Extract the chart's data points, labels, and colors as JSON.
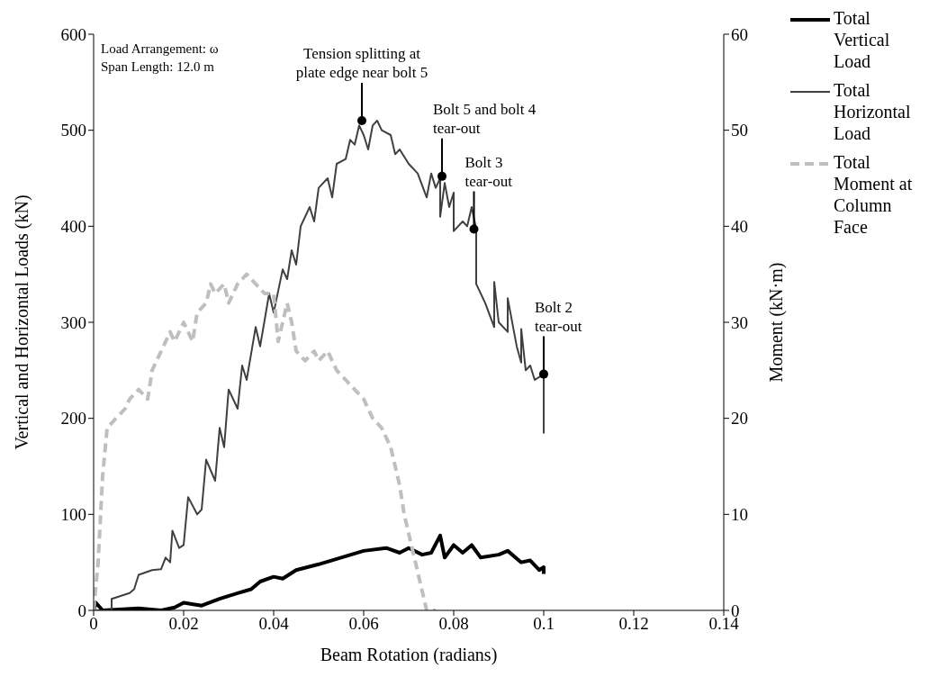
{
  "chart_data": {
    "type": "line",
    "xlabel": "Beam Rotation (radians)",
    "ylabel": "Vertical and Horizontal Loads (kN)",
    "y2label": "Moment (kN·m)",
    "xlim": [
      0,
      0.14
    ],
    "xticks": [
      0,
      0.02,
      0.04,
      0.06,
      0.08,
      0.1,
      0.12,
      0.14
    ],
    "ylim": [
      0,
      600
    ],
    "yticks": [
      0,
      100,
      200,
      300,
      400,
      500,
      600
    ],
    "y2lim": [
      0,
      60
    ],
    "y2ticks": [
      0,
      10,
      20,
      30,
      40,
      50,
      60
    ],
    "grid": false,
    "legend": "right",
    "annotations": [
      "Load Arrangement: ω",
      "Span Length: 12.0 m",
      {
        "text": "Tension splitting at plate edge near bolt 5",
        "x": 0.0596,
        "y": 510
      },
      {
        "text": "Bolt 5 and bolt 4 tear-out",
        "x": 0.0774,
        "y": 452
      },
      {
        "text": "Bolt 3 tear-out",
        "x": 0.0845,
        "y": 397
      },
      {
        "text": "Bolt 2 tear-out",
        "x": 0.1,
        "y": 246
      }
    ],
    "series": [
      {
        "name": "Total Vertical Load",
        "color": "#000000",
        "line_style": "solid",
        "x": [
          0,
          0.0005,
          0.002,
          0.01,
          0.015,
          0.018,
          0.02,
          0.024,
          0.028,
          0.032,
          0.035,
          0.037,
          0.04,
          0.042,
          0.045,
          0.05,
          0.055,
          0.06,
          0.065,
          0.068,
          0.07,
          0.073,
          0.075,
          0.077,
          0.078,
          0.08,
          0.082,
          0.084,
          0.086,
          0.09,
          0.092,
          0.095,
          0.097,
          0.099,
          0.1,
          0.1
        ],
        "values": [
          0,
          8,
          0,
          2,
          0,
          3,
          8,
          5,
          12,
          18,
          22,
          30,
          35,
          33,
          42,
          48,
          55,
          62,
          65,
          60,
          65,
          58,
          60,
          78,
          55,
          68,
          60,
          68,
          55,
          58,
          62,
          50,
          52,
          42,
          45,
          38
        ]
      },
      {
        "name": "Total Horizontal Load",
        "color": "#404040",
        "line_style": "solid",
        "x": [
          0,
          0.004,
          0.004,
          0.008,
          0.009,
          0.01,
          0.013,
          0.015,
          0.016,
          0.017,
          0.0175,
          0.019,
          0.02,
          0.021,
          0.023,
          0.024,
          0.025,
          0.027,
          0.028,
          0.029,
          0.03,
          0.032,
          0.033,
          0.034,
          0.036,
          0.037,
          0.039,
          0.04,
          0.042,
          0.043,
          0.044,
          0.045,
          0.046,
          0.048,
          0.049,
          0.05,
          0.052,
          0.053,
          0.054,
          0.056,
          0.057,
          0.058,
          0.059,
          0.06,
          0.061,
          0.062,
          0.063,
          0.064,
          0.066,
          0.067,
          0.068,
          0.07,
          0.072,
          0.074,
          0.075,
          0.076,
          0.077,
          0.077,
          0.078,
          0.079,
          0.08,
          0.08,
          0.082,
          0.083,
          0.084,
          0.085,
          0.085,
          0.087,
          0.089,
          0.089,
          0.09,
          0.092,
          0.092,
          0.094,
          0.095,
          0.095,
          0.096,
          0.097,
          0.098,
          0.1,
          0.1,
          0.1
        ],
        "values": [
          0,
          0,
          12,
          18,
          22,
          37,
          42,
          43,
          55,
          50,
          83,
          65,
          68,
          118,
          100,
          105,
          157,
          135,
          190,
          170,
          230,
          210,
          255,
          240,
          295,
          275,
          330,
          310,
          355,
          345,
          375,
          360,
          400,
          420,
          405,
          440,
          450,
          430,
          465,
          470,
          490,
          485,
          505,
          495,
          480,
          505,
          510,
          500,
          495,
          475,
          480,
          465,
          455,
          430,
          455,
          440,
          450,
          410,
          445,
          420,
          435,
          395,
          405,
          400,
          420,
          397,
          340,
          320,
          295,
          342,
          300,
          290,
          325,
          275,
          258,
          293,
          250,
          255,
          240,
          246,
          185,
          240
        ]
      },
      {
        "name": "Total Moment at Column Face",
        "color": "#bfbfbf",
        "line_style": "dashed",
        "axis": "y2",
        "x": [
          0,
          0.001,
          0.002,
          0.003,
          0.005,
          0.007,
          0.008,
          0.01,
          0.012,
          0.013,
          0.015,
          0.017,
          0.018,
          0.02,
          0.022,
          0.023,
          0.025,
          0.026,
          0.027,
          0.029,
          0.03,
          0.032,
          0.034,
          0.036,
          0.038,
          0.04,
          0.041,
          0.042,
          0.043,
          0.044,
          0.045,
          0.047,
          0.049,
          0.05,
          0.052,
          0.054,
          0.056,
          0.058,
          0.06,
          0.062,
          0.064,
          0.066,
          0.068,
          0.069,
          0.07,
          0.072,
          0.073,
          0.074,
          0.075,
          0.076
        ],
        "values": [
          0,
          5,
          14,
          19,
          20,
          21,
          22,
          23,
          22,
          25,
          27,
          29,
          28,
          30,
          28,
          31,
          32,
          34,
          33,
          34,
          32,
          34,
          35,
          34,
          33,
          33,
          28,
          30,
          32,
          30,
          27,
          26,
          27,
          26,
          27,
          25,
          24,
          23,
          22,
          20,
          19,
          17,
          13,
          10,
          8,
          4,
          2,
          0,
          0,
          0
        ]
      }
    ]
  }
}
